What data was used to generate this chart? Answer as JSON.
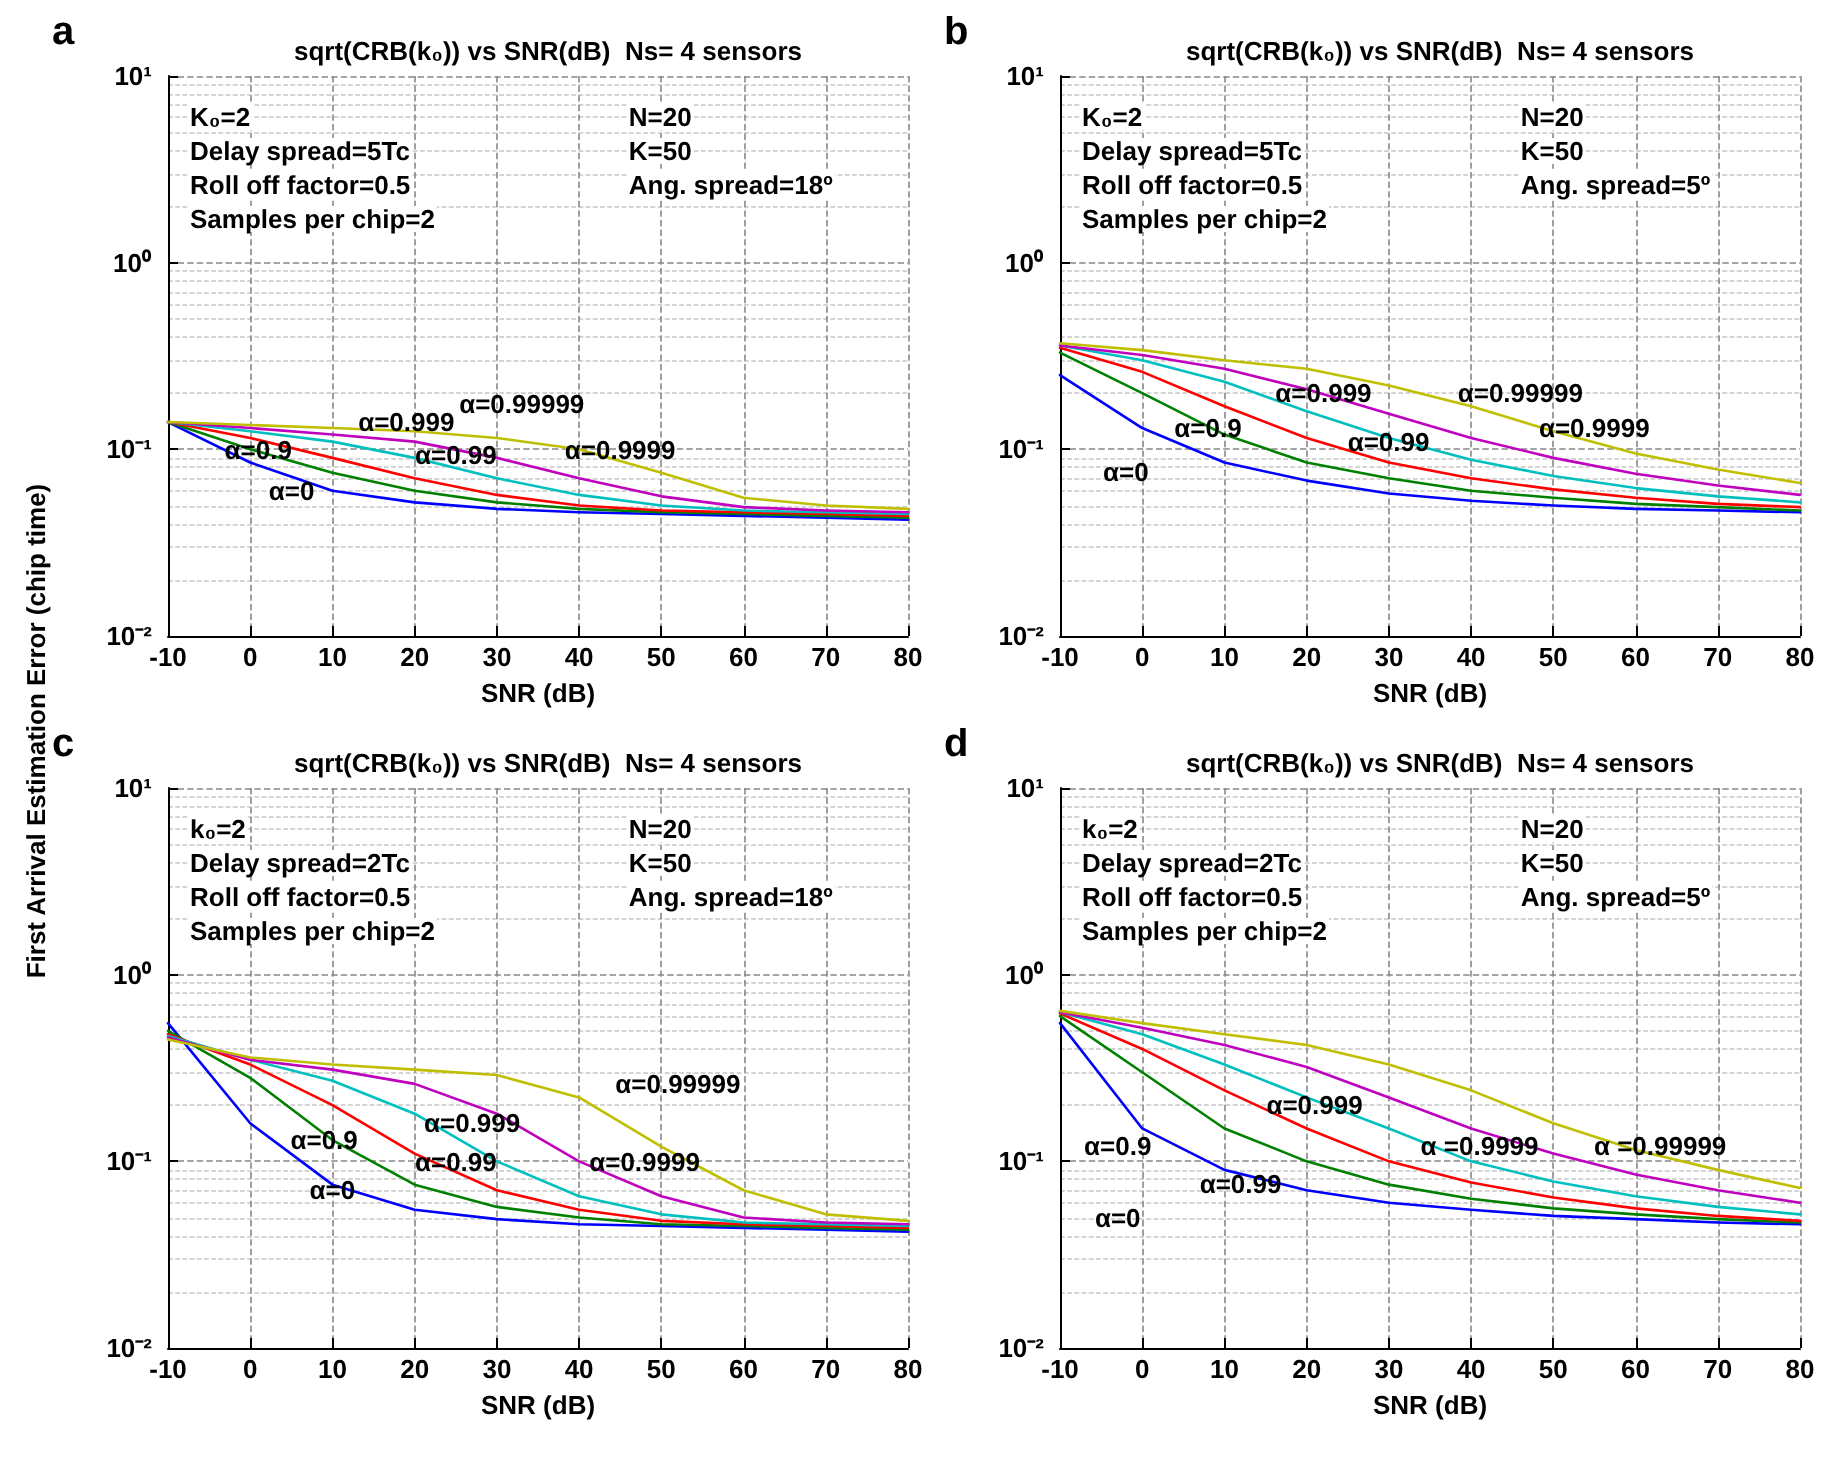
{
  "chart_data": [
    {
      "type": "line",
      "title": "sqrt(CRB(k₀)) vs SNR(dB)  Ns= 4 sensors",
      "xlabel": "SNR (dB)",
      "ylabel": "First Arrival Estimation Error (chip time)",
      "x": [
        -10,
        0,
        10,
        20,
        30,
        40,
        50,
        60,
        70,
        80
      ],
      "log": "y",
      "grid": true,
      "marker": "none",
      "line_style": "solid",
      "xlim": [
        -10,
        80
      ],
      "xticks": [
        -10,
        0,
        10,
        20,
        30,
        40,
        50,
        60,
        70,
        80
      ],
      "ylim": [
        0.01,
        10
      ],
      "yticks": [
        {
          "value": 0.01,
          "label": "10⁻²"
        },
        {
          "value": 0.1,
          "label": "10⁻¹"
        },
        {
          "value": 1,
          "label": "10⁰"
        },
        {
          "value": 10,
          "label": "10¹"
        }
      ],
      "series": [
        {
          "color": "#0000ff",
          "values": [
            0.14,
            0.085,
            0.06,
            0.052,
            0.048,
            0.046,
            0.045,
            0.044,
            0.043,
            0.042
          ]
        },
        {
          "color": "#008000",
          "values": [
            0.14,
            0.1,
            0.075,
            0.06,
            0.052,
            0.048,
            0.046,
            0.045,
            0.044,
            0.043
          ]
        },
        {
          "color": "#ff0000",
          "values": [
            0.14,
            0.115,
            0.09,
            0.07,
            0.057,
            0.05,
            0.047,
            0.046,
            0.045,
            0.044
          ]
        },
        {
          "color": "#00bfbf",
          "values": [
            0.14,
            0.125,
            0.11,
            0.09,
            0.07,
            0.057,
            0.05,
            0.047,
            0.046,
            0.045
          ]
        },
        {
          "color": "#bf00bf",
          "values": [
            0.14,
            0.13,
            0.12,
            0.11,
            0.09,
            0.07,
            0.056,
            0.049,
            0.047,
            0.046
          ]
        },
        {
          "color": "#bfbf00",
          "values": [
            0.14,
            0.135,
            0.13,
            0.125,
            0.115,
            0.1,
            0.075,
            0.055,
            0.05,
            0.048
          ]
        }
      ],
      "annotations": [
        "a",
        "K₀=2",
        "Delay spread=5Tc",
        "Roll off factor=0.5",
        "Samples per chip=2",
        "N=20",
        "K=50",
        "Ang. spread=18º",
        "α=0.9",
        "α=0.999",
        "α=0.99999",
        "α=0.9999",
        "α=0.99",
        "α=0"
      ]
    },
    {
      "type": "line",
      "title": "sqrt(CRB(k₀)) vs SNR(dB)  Ns= 4 sensors",
      "xlabel": "SNR (dB)",
      "x": [
        -10,
        0,
        10,
        20,
        30,
        40,
        50,
        60,
        70,
        80
      ],
      "log": "y",
      "grid": true,
      "marker": "none",
      "line_style": "solid",
      "xlim": [
        -10,
        80
      ],
      "xticks": [
        -10,
        0,
        10,
        20,
        30,
        40,
        50,
        60,
        70,
        80
      ],
      "ylim": [
        0.01,
        10
      ],
      "yticks": [
        {
          "value": 0.01,
          "label": "10⁻²"
        },
        {
          "value": 0.1,
          "label": "10⁻¹"
        },
        {
          "value": 1,
          "label": "10⁰"
        },
        {
          "value": 10,
          "label": "10¹"
        }
      ],
      "series": [
        {
          "color": "#0000ff",
          "values": [
            0.25,
            0.13,
            0.085,
            0.068,
            0.058,
            0.053,
            0.05,
            0.048,
            0.047,
            0.046
          ]
        },
        {
          "color": "#008000",
          "values": [
            0.33,
            0.2,
            0.12,
            0.085,
            0.07,
            0.06,
            0.055,
            0.051,
            0.049,
            0.047
          ]
        },
        {
          "color": "#ff0000",
          "values": [
            0.35,
            0.26,
            0.17,
            0.115,
            0.085,
            0.07,
            0.061,
            0.055,
            0.051,
            0.049
          ]
        },
        {
          "color": "#00bfbf",
          "values": [
            0.36,
            0.3,
            0.23,
            0.16,
            0.115,
            0.088,
            0.072,
            0.062,
            0.056,
            0.052
          ]
        },
        {
          "color": "#bf00bf",
          "values": [
            0.36,
            0.32,
            0.27,
            0.21,
            0.155,
            0.115,
            0.09,
            0.074,
            0.064,
            0.057
          ]
        },
        {
          "color": "#bfbf00",
          "values": [
            0.37,
            0.34,
            0.3,
            0.27,
            0.22,
            0.17,
            0.125,
            0.095,
            0.078,
            0.066
          ]
        }
      ],
      "annotations": [
        "b",
        "K₀=2",
        "Delay spread=5Tc",
        "Roll off factor=0.5",
        "Samples per chip=2",
        "N=20",
        "K=50",
        "Ang. spread=5º",
        "α=0.9",
        "α=0.999",
        "α=0.99999",
        "α=0.99",
        "α=0.9999",
        "α=0"
      ]
    },
    {
      "type": "line",
      "title": "sqrt(CRB(k₀)) vs SNR(dB)  Ns= 4 sensors",
      "xlabel": "SNR (dB)",
      "x": [
        -10,
        0,
        10,
        20,
        30,
        40,
        50,
        60,
        70,
        80
      ],
      "log": "y",
      "grid": true,
      "marker": "none",
      "line_style": "solid",
      "xlim": [
        -10,
        80
      ],
      "xticks": [
        -10,
        0,
        10,
        20,
        30,
        40,
        50,
        60,
        70,
        80
      ],
      "ylim": [
        0.01,
        10
      ],
      "yticks": [
        {
          "value": 0.01,
          "label": "10⁻²"
        },
        {
          "value": 0.1,
          "label": "10⁻¹"
        },
        {
          "value": 1,
          "label": "10⁰"
        },
        {
          "value": 10,
          "label": "10¹"
        }
      ],
      "series": [
        {
          "color": "#0000ff",
          "values": [
            0.55,
            0.16,
            0.075,
            0.055,
            0.049,
            0.046,
            0.045,
            0.044,
            0.043,
            0.042
          ]
        },
        {
          "color": "#008000",
          "values": [
            0.5,
            0.28,
            0.13,
            0.075,
            0.057,
            0.05,
            0.046,
            0.045,
            0.044,
            0.043
          ]
        },
        {
          "color": "#ff0000",
          "values": [
            0.48,
            0.33,
            0.2,
            0.11,
            0.07,
            0.055,
            0.048,
            0.046,
            0.045,
            0.044
          ]
        },
        {
          "color": "#00bfbf",
          "values": [
            0.47,
            0.35,
            0.27,
            0.18,
            0.1,
            0.065,
            0.052,
            0.047,
            0.046,
            0.045
          ]
        },
        {
          "color": "#bf00bf",
          "values": [
            0.46,
            0.35,
            0.31,
            0.26,
            0.18,
            0.1,
            0.065,
            0.05,
            0.047,
            0.046
          ]
        },
        {
          "color": "#bfbf00",
          "values": [
            0.45,
            0.36,
            0.33,
            0.31,
            0.29,
            0.22,
            0.12,
            0.07,
            0.052,
            0.048
          ]
        }
      ],
      "annotations": [
        "c",
        "k₀=2",
        "Delay spread=2Tc",
        "Roll off factor=0.5",
        "Samples per chip=2",
        "N=20",
        "K=50",
        "Ang. spread=18º",
        "α=0.9",
        "α=0.999",
        "α=0.99999",
        "α=0.99",
        "α=0.9999",
        "α=0"
      ]
    },
    {
      "type": "line",
      "title": "sqrt(CRB(k₀)) vs SNR(dB)  Ns= 4 sensors",
      "xlabel": "SNR (dB)",
      "x": [
        -10,
        0,
        10,
        20,
        30,
        40,
        50,
        60,
        70,
        80
      ],
      "log": "y",
      "grid": true,
      "marker": "none",
      "line_style": "solid",
      "xlim": [
        -10,
        80
      ],
      "xticks": [
        -10,
        0,
        10,
        20,
        30,
        40,
        50,
        60,
        70,
        80
      ],
      "ylim": [
        0.01,
        10
      ],
      "yticks": [
        {
          "value": 0.01,
          "label": "10⁻²"
        },
        {
          "value": 0.1,
          "label": "10⁻¹"
        },
        {
          "value": 1,
          "label": "10⁰"
        },
        {
          "value": 10,
          "label": "10¹"
        }
      ],
      "series": [
        {
          "color": "#0000ff",
          "values": [
            0.55,
            0.15,
            0.09,
            0.07,
            0.06,
            0.055,
            0.051,
            0.049,
            0.047,
            0.046
          ]
        },
        {
          "color": "#008000",
          "values": [
            0.6,
            0.3,
            0.15,
            0.1,
            0.075,
            0.063,
            0.056,
            0.052,
            0.049,
            0.047
          ]
        },
        {
          "color": "#ff0000",
          "values": [
            0.62,
            0.4,
            0.24,
            0.15,
            0.1,
            0.077,
            0.064,
            0.056,
            0.051,
            0.048
          ]
        },
        {
          "color": "#00bfbf",
          "values": [
            0.63,
            0.48,
            0.33,
            0.22,
            0.15,
            0.1,
            0.078,
            0.065,
            0.057,
            0.052
          ]
        },
        {
          "color": "#bf00bf",
          "values": [
            0.63,
            0.52,
            0.42,
            0.32,
            0.22,
            0.15,
            0.11,
            0.085,
            0.07,
            0.06
          ]
        },
        {
          "color": "#bfbf00",
          "values": [
            0.64,
            0.55,
            0.48,
            0.42,
            0.33,
            0.24,
            0.16,
            0.115,
            0.09,
            0.072
          ]
        }
      ],
      "annotations": [
        "d",
        "k₀=2",
        "Delay spread=2Tc",
        "Roll off factor=0.5",
        "Samples per chip=2",
        "N=20",
        "K=50",
        "Ang. spread=5º",
        "α=0.9",
        "α=0.999",
        "α=0.99",
        "α=0",
        "α =0.9999",
        "α =0.99999"
      ]
    }
  ]
}
